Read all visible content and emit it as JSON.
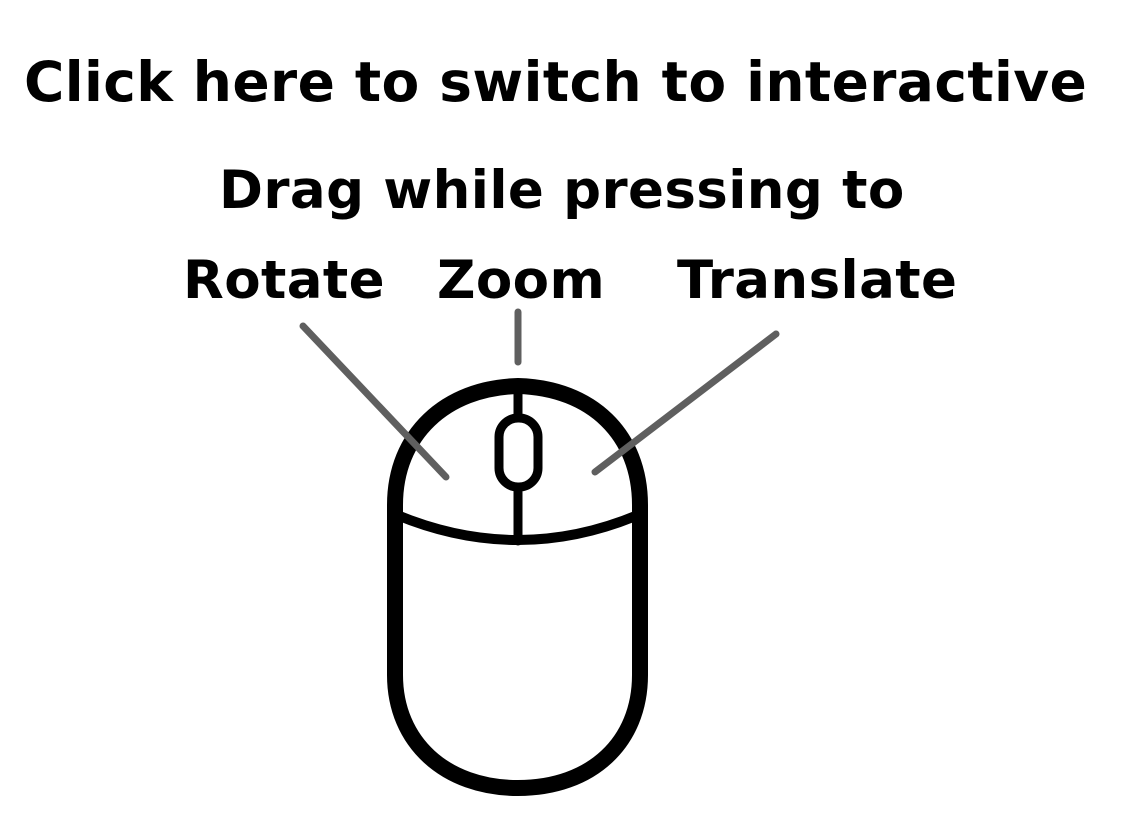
{
  "overlay": {
    "title": "Click here to switch to interactive",
    "subtitle": "Drag while pressing to",
    "actions": [
      {
        "label": "Rotate",
        "button": "left"
      },
      {
        "label": "Zoom",
        "button": "wheel"
      },
      {
        "label": "Translate",
        "button": "right"
      }
    ],
    "icon": "mouse-icon",
    "colors": {
      "background": "#ffffff",
      "text": "#000000",
      "pointer_line": "#5f5f5f"
    }
  }
}
